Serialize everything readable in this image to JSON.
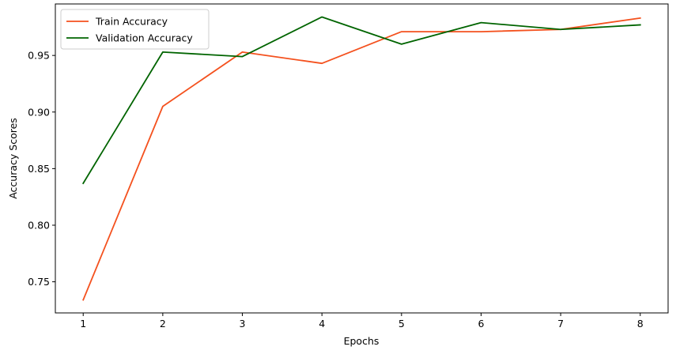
{
  "chart_data": {
    "type": "line",
    "xlabel": "Epochs",
    "ylabel": "Accuracy Scores",
    "x": [
      1,
      2,
      3,
      4,
      5,
      6,
      7,
      8
    ],
    "xticks": [
      "1",
      "2",
      "3",
      "4",
      "5",
      "6",
      "7",
      "8"
    ],
    "yticks": [
      "0.75",
      "0.80",
      "0.85",
      "0.90",
      "0.95"
    ],
    "ytick_values": [
      0.75,
      0.8,
      0.85,
      0.9,
      0.95
    ],
    "xlim": [
      0.65,
      8.35
    ],
    "ylim": [
      0.7225,
      0.9955
    ],
    "grid": false,
    "legend_position": "upper left",
    "series": [
      {
        "name": "Train Accuracy",
        "color": "#f4511e",
        "values": [
          0.734,
          0.905,
          0.953,
          0.943,
          0.971,
          0.971,
          0.973,
          0.983
        ]
      },
      {
        "name": "Validation Accuracy",
        "color": "#006400",
        "values": [
          0.837,
          0.953,
          0.949,
          0.984,
          0.96,
          0.979,
          0.973,
          0.977
        ]
      }
    ]
  }
}
